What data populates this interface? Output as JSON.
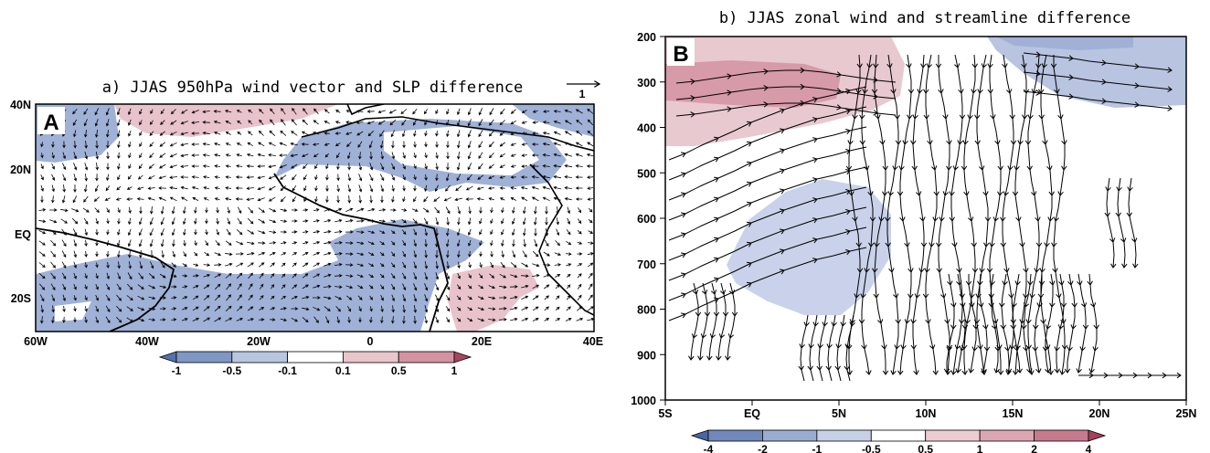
{
  "panel_a": {
    "title": "a) JJAS 950hPa wind vector and SLP difference",
    "badge": "A",
    "ref_vector_label": "1",
    "lon_ticks": [
      "60W",
      "40W",
      "20W",
      "0",
      "20E",
      "40E"
    ],
    "lat_ticks": [
      "40N",
      "20N",
      "EQ",
      "20S"
    ],
    "colorbar_labels": [
      "-1",
      "-0.5",
      "-0.1",
      "0.1",
      "0.5",
      "1"
    ],
    "colorbar_colors": [
      "#5572ab",
      "#7f97c4",
      "#b9c6e0",
      "#ffffff",
      "#e9c5cc",
      "#d393a1",
      "#a9475c"
    ]
  },
  "panel_b": {
    "title": "b) JJAS zonal wind and streamline difference",
    "badge": "B",
    "pressure_ticks": [
      "200",
      "300",
      "400",
      "500",
      "600",
      "700",
      "800",
      "900",
      "1000"
    ],
    "lat_ticks": [
      "5S",
      "EQ",
      "5N",
      "10N",
      "15N",
      "20N",
      "25N"
    ],
    "colorbar_labels": [
      "-4",
      "-2",
      "-1",
      "-0.5",
      "0.5",
      "1",
      "2",
      "4"
    ],
    "colorbar_colors": [
      "#4a67a3",
      "#7088bb",
      "#9aacd0",
      "#c6d0e6",
      "#ffffff",
      "#ecccd3",
      "#dba7b3",
      "#c77a8d",
      "#a3405a"
    ]
  }
}
